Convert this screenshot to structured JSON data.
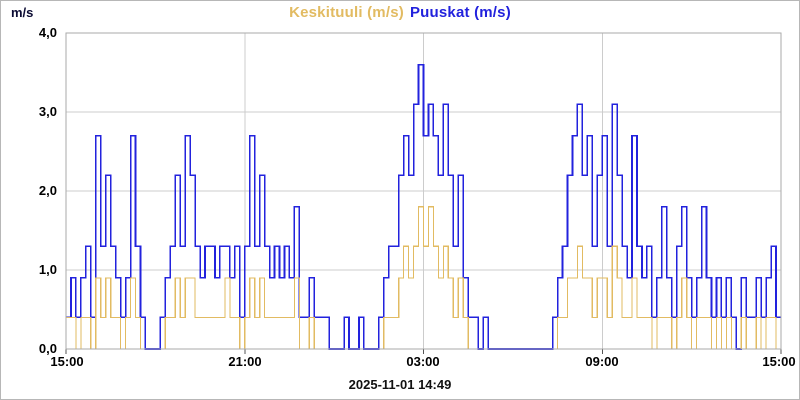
{
  "title": {
    "mean": "Keskituuli (m/s)",
    "gust": "Puuskat (m/s)"
  },
  "unit_label": "m/s",
  "timestamp": "2025-11-01 14:49",
  "colors": {
    "mean": "#e2bb62",
    "gust": "#2222dd",
    "grid": "#cccccc",
    "border": "#aaaaaa",
    "tick": "#555555",
    "axis_text": "#000000"
  },
  "chart_data": {
    "type": "line",
    "step": true,
    "title": "Keskituuli (m/s) Puuskat (m/s)",
    "xlabel": "",
    "ylabel": "m/s",
    "ylim": [
      0,
      4
    ],
    "ytick_values": [
      0,
      1,
      2,
      3,
      4
    ],
    "yticks": [
      "4,0",
      "3,0",
      "2,0",
      "1,0",
      "0,0"
    ],
    "xticks": [
      "15:00",
      "21:00",
      "03:00",
      "09:00",
      "15:00"
    ],
    "xtick_positions_hours": [
      0,
      6,
      12,
      18,
      24
    ],
    "span_hours": 24,
    "sample_interval_minutes": 10,
    "grid": true,
    "legend_position": "top-center",
    "series": [
      {
        "name": "Keskituuli (m/s)",
        "color": "#e2bb62",
        "values": [
          0.4,
          0.4,
          0,
          0.4,
          0.4,
          0,
          0.9,
          0.4,
          0.9,
          0.4,
          0.4,
          0,
          0.4,
          0.9,
          0.4,
          0,
          0,
          0,
          0,
          0,
          0.4,
          0.4,
          0.9,
          0.4,
          0.9,
          0.9,
          0.4,
          0.4,
          0.4,
          0.4,
          0.4,
          0.4,
          0.9,
          0.4,
          0.4,
          0,
          0.4,
          0.9,
          0.4,
          0.9,
          0.4,
          0.4,
          0.4,
          0.4,
          0.4,
          0.4,
          0.9,
          0,
          0,
          0.4,
          0,
          0,
          0,
          0,
          0,
          0,
          0,
          0,
          0,
          0,
          0,
          0,
          0,
          0,
          0.4,
          0.4,
          0.4,
          0.9,
          1.3,
          0.9,
          1.3,
          1.8,
          1.3,
          1.8,
          1.3,
          0.9,
          1.3,
          0.9,
          0.4,
          0.9,
          0.4,
          0,
          0,
          0,
          0,
          0,
          0,
          0,
          0,
          0,
          0,
          0,
          0,
          0,
          0,
          0,
          0,
          0,
          0,
          0.4,
          0.4,
          0.9,
          0.9,
          1.3,
          0.9,
          0.9,
          0.4,
          0.9,
          0.9,
          0.4,
          1.3,
          0.9,
          0.4,
          0.4,
          0.9,
          0.4,
          0.4,
          0.4,
          0,
          0.4,
          0.4,
          0.4,
          0,
          0.4,
          0.9,
          0.4,
          0,
          0.4,
          0.4,
          0.4,
          0,
          0.4,
          0,
          0.4,
          0,
          0,
          0.4,
          0,
          0,
          0.4,
          0,
          0.4,
          0.4,
          0
        ]
      },
      {
        "name": "Puuskat (m/s)",
        "color": "#2222dd",
        "values": [
          0.4,
          0.9,
          0.4,
          0.9,
          1.3,
          0.4,
          2.7,
          1.3,
          2.2,
          1.3,
          0.9,
          0.4,
          0.9,
          2.7,
          1.3,
          0.4,
          0,
          0,
          0,
          0.4,
          0.9,
          1.3,
          2.2,
          1.3,
          2.7,
          2.2,
          1.3,
          0.9,
          1.3,
          1.3,
          0.9,
          1.3,
          1.3,
          0.9,
          1.3,
          0.4,
          1.3,
          2.7,
          1.3,
          2.2,
          1.3,
          0.9,
          1.3,
          0.9,
          1.3,
          0.9,
          1.8,
          0.4,
          0.4,
          0.9,
          0.4,
          0.4,
          0.4,
          0,
          0,
          0,
          0.4,
          0,
          0,
          0.4,
          0,
          0,
          0,
          0.4,
          0.9,
          1.3,
          1.3,
          2.2,
          2.7,
          2.2,
          3.1,
          3.6,
          2.7,
          3.1,
          2.7,
          2.2,
          3.1,
          2.2,
          1.3,
          2.2,
          0.9,
          0.4,
          0.4,
          0,
          0.4,
          0,
          0,
          0,
          0,
          0,
          0,
          0,
          0,
          0,
          0,
          0,
          0,
          0,
          0.4,
          0.9,
          1.3,
          2.2,
          2.7,
          3.1,
          2.2,
          2.7,
          1.3,
          2.2,
          2.7,
          1.3,
          3.1,
          2.2,
          1.3,
          0.9,
          2.7,
          1.3,
          0.9,
          1.3,
          0.4,
          0.9,
          1.8,
          0.9,
          0.4,
          1.3,
          1.8,
          0.9,
          0.4,
          0.9,
          1.8,
          0.9,
          0.4,
          0.9,
          0.4,
          0.9,
          0.4,
          0,
          0.9,
          0.4,
          0.4,
          0.9,
          0.4,
          0.9,
          1.3,
          0.4
        ]
      }
    ]
  }
}
